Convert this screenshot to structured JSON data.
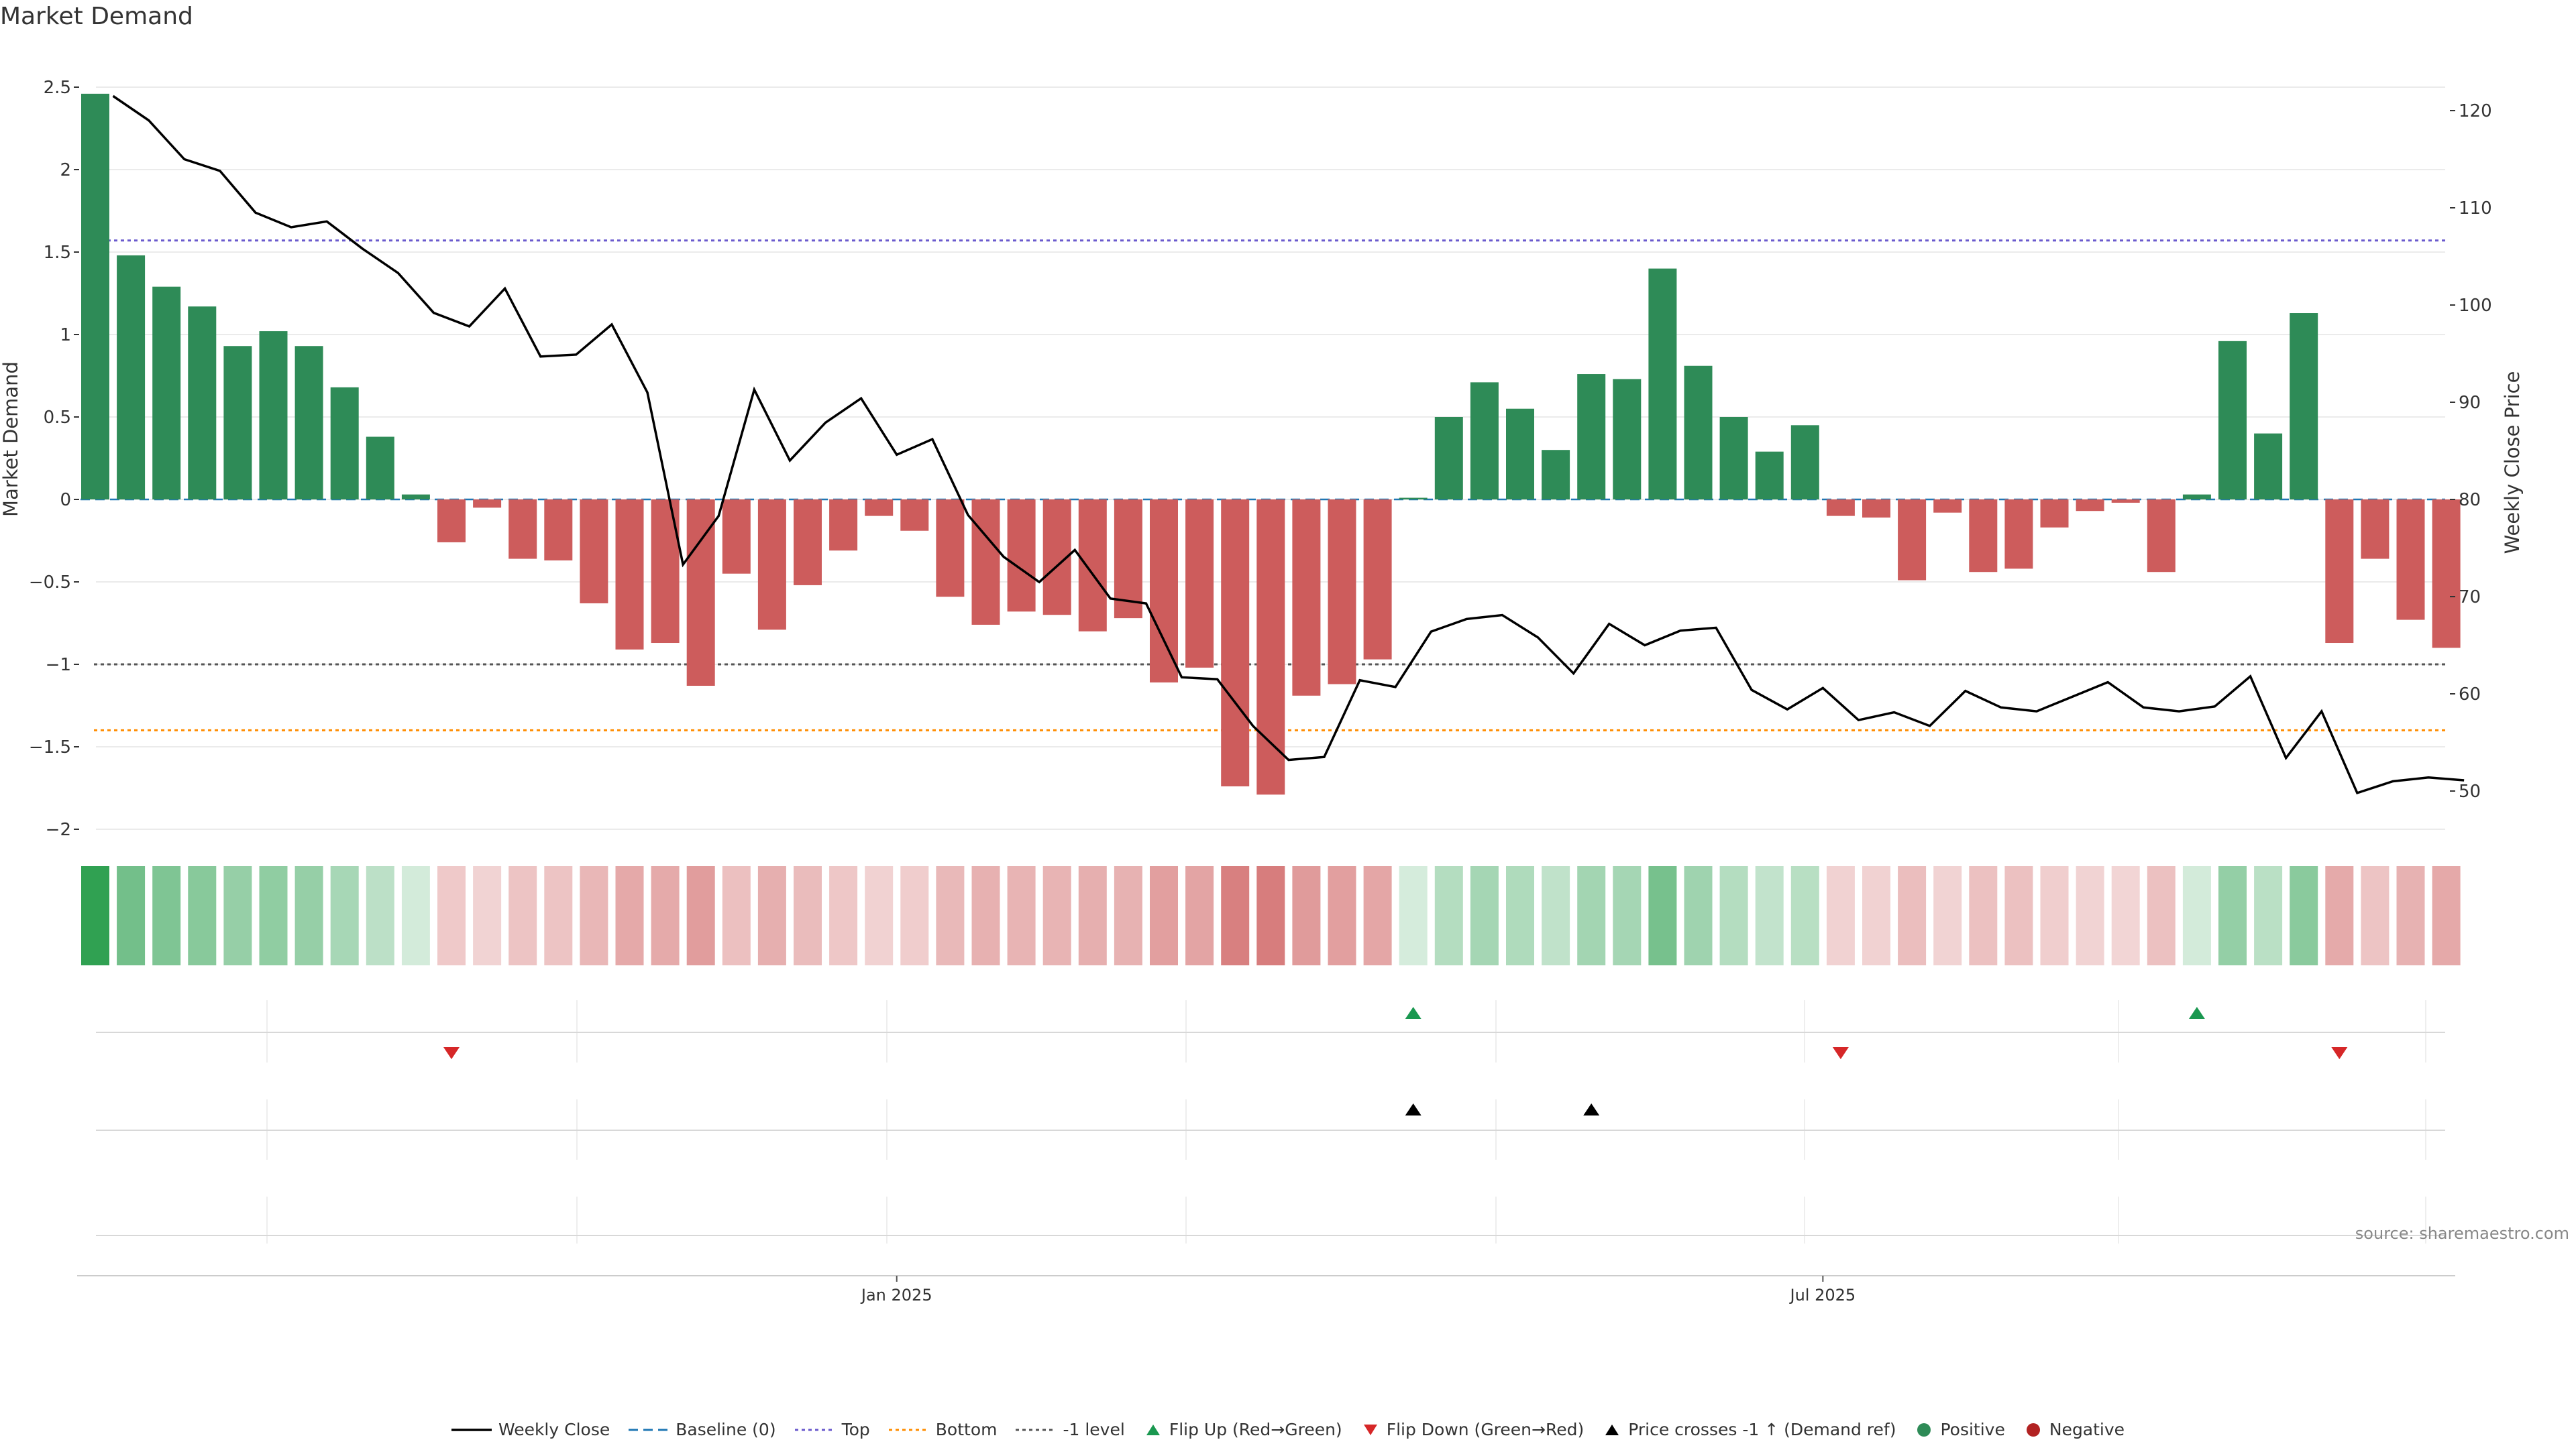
{
  "title": "Market Demand",
  "source": "source: sharemaestro.com",
  "colors": {
    "positive": "#2e8b57",
    "negative": "#cd5c5c",
    "price": "#000000",
    "baseline": "#1f77b4",
    "top": "#6a5acd",
    "bottom": "#ff8c00",
    "minus1": "#555555",
    "flip_up": "#1a9850",
    "flip_down": "#d62728"
  },
  "chart_data": {
    "type": "bar",
    "title": "Market Demand",
    "ylabel": "Market Demand",
    "y2label": "Weekly Close Price",
    "ylim": [
      -2.05,
      2.55
    ],
    "y2lim": [
      46.4,
      124.0
    ],
    "yticks": [
      2.5,
      2,
      1.5,
      1,
      0.5,
      0,
      -0.5,
      -1,
      -1.5,
      -2
    ],
    "ytick_labels": [
      "2.5",
      "2",
      "1.5",
      "1",
      "0.5",
      "0",
      "−0.5",
      "−1",
      "−1.5",
      "−2"
    ],
    "y2ticks": [
      120,
      110,
      100,
      90,
      80,
      70,
      60,
      50
    ],
    "y2tick_labels": [
      "120",
      "110",
      "100",
      "90",
      "80",
      "70",
      "60",
      "50"
    ],
    "x_dates": [
      "Jan 2025",
      "Jul 2025"
    ],
    "x_date_positions": [
      22.5,
      48.5
    ],
    "reference_lines": {
      "baseline": 0,
      "top": 1.57,
      "bottom": -1.4,
      "minus1": -1.0
    },
    "demand": [
      2.46,
      1.48,
      1.29,
      1.17,
      0.93,
      1.02,
      0.93,
      0.68,
      0.38,
      0.03,
      -0.26,
      -0.05,
      -0.36,
      -0.37,
      -0.63,
      -0.91,
      -0.87,
      -1.13,
      -0.45,
      -0.79,
      -0.52,
      -0.31,
      -0.1,
      -0.19,
      -0.59,
      -0.76,
      -0.68,
      -0.7,
      -0.8,
      -0.72,
      -1.11,
      -1.02,
      -1.74,
      -1.79,
      -1.19,
      -1.12,
      -0.97,
      0.01,
      0.5,
      0.71,
      0.55,
      0.3,
      0.76,
      0.73,
      1.4,
      0.81,
      0.5,
      0.29,
      0.45,
      -0.1,
      -0.11,
      -0.49,
      -0.08,
      -0.44,
      -0.42,
      -0.17,
      -0.07,
      -0.02,
      -0.44,
      0.03,
      0.96,
      0.4,
      1.13,
      -0.87,
      -0.36,
      -0.73,
      -0.9
    ],
    "price": [
      121.5,
      119.0,
      115.0,
      113.8,
      109.5,
      108.0,
      108.6,
      105.8,
      103.3,
      99.2,
      97.8,
      101.7,
      94.7,
      94.9,
      98.0,
      91.0,
      73.3,
      78.3,
      91.3,
      84.0,
      87.9,
      90.4,
      84.6,
      86.2,
      78.4,
      74.1,
      71.5,
      74.8,
      69.8,
      69.3,
      61.7,
      61.5,
      56.7,
      53.2,
      53.5,
      61.4,
      60.7,
      66.4,
      67.7,
      68.1,
      65.8,
      62.1,
      67.2,
      65.0,
      66.5,
      66.8,
      60.4,
      58.4,
      60.6,
      57.3,
      58.1,
      56.7,
      60.3,
      58.6,
      58.2,
      59.7,
      61.2,
      58.6,
      58.2,
      58.7,
      61.8,
      53.4,
      58.2,
      49.8,
      51.0,
      51.4,
      51.1
    ],
    "flip_up_idx": [
      37,
      59
    ],
    "flip_down_idx": [
      10,
      49,
      63
    ],
    "price_cross_idx": [
      37,
      42
    ]
  },
  "legend": [
    {
      "key": "weekly-close",
      "label": "Weekly Close"
    },
    {
      "key": "baseline",
      "label": "Baseline (0)"
    },
    {
      "key": "top",
      "label": "Top"
    },
    {
      "key": "bottom",
      "label": "Bottom"
    },
    {
      "key": "minus1",
      "label": "-1 level"
    },
    {
      "key": "flip-up",
      "label": "Flip Up (Red→Green)"
    },
    {
      "key": "flip-down",
      "label": "Flip Down (Green→Red)"
    },
    {
      "key": "price-cross",
      "label": "Price crosses -1 ↑ (Demand ref)"
    },
    {
      "key": "positive",
      "label": "Positive"
    },
    {
      "key": "negative",
      "label": "Negative"
    }
  ]
}
